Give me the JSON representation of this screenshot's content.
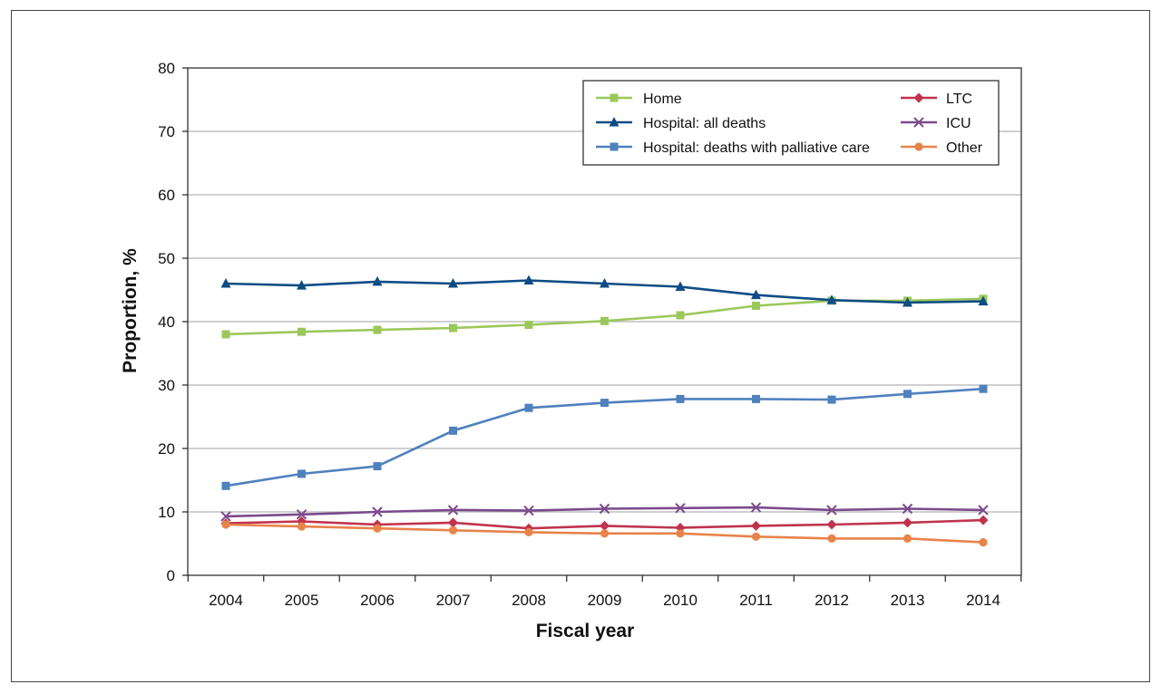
{
  "chart_data": {
    "type": "line",
    "title": "",
    "xlabel": "Fiscal year",
    "ylabel": "Proportion, %",
    "ylim": [
      0,
      80
    ],
    "yticks": [
      0,
      10,
      20,
      30,
      40,
      50,
      60,
      70,
      80
    ],
    "grid": "horizontal",
    "legend_position": "top-right",
    "x": [
      "2004",
      "2005",
      "2006",
      "2007",
      "2008",
      "2009",
      "2010",
      "2011",
      "2012",
      "2013",
      "2014"
    ],
    "series": [
      {
        "name": "Home",
        "color": "#9bc85a",
        "marker": "square",
        "values": [
          38.0,
          38.4,
          38.7,
          39.0,
          39.5,
          40.1,
          41.0,
          42.5,
          43.3,
          43.3,
          43.6
        ]
      },
      {
        "name": "Hospital: all deaths",
        "color": "#0e4c85",
        "marker": "triangle",
        "values": [
          46.0,
          45.7,
          46.3,
          46.0,
          46.5,
          46.0,
          45.5,
          44.2,
          43.4,
          43.0,
          43.2
        ]
      },
      {
        "name": "Hospital: deaths with palliative care",
        "color": "#4f81bd",
        "marker": "square",
        "values": [
          14.1,
          16.0,
          17.2,
          22.8,
          26.4,
          27.2,
          27.8,
          27.8,
          27.7,
          28.6,
          29.4
        ]
      },
      {
        "name": "LTC",
        "color": "#c0334d",
        "marker": "diamond",
        "values": [
          8.2,
          8.5,
          8.0,
          8.3,
          7.4,
          7.8,
          7.5,
          7.8,
          8.0,
          8.3,
          8.7
        ]
      },
      {
        "name": "ICU",
        "color": "#7b4a8c",
        "marker": "x",
        "values": [
          9.3,
          9.6,
          10.0,
          10.3,
          10.2,
          10.5,
          10.6,
          10.7,
          10.3,
          10.5,
          10.3
        ]
      },
      {
        "name": "Other",
        "color": "#e8834a",
        "marker": "circle",
        "values": [
          8.0,
          7.7,
          7.4,
          7.1,
          6.8,
          6.6,
          6.6,
          6.1,
          5.8,
          5.8,
          5.2
        ]
      }
    ]
  }
}
